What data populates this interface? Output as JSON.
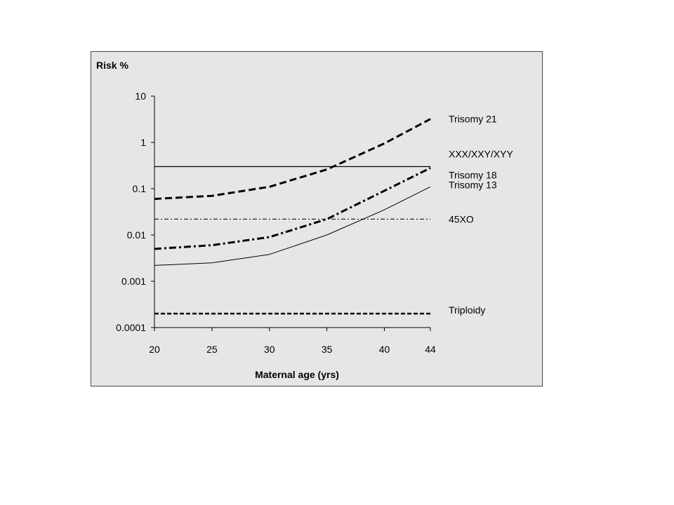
{
  "chart_data": {
    "type": "line",
    "title": "",
    "xlabel": "Maternal age (yrs)",
    "ylabel": "Risk %",
    "x_ticks": [
      20,
      25,
      30,
      35,
      40,
      44
    ],
    "y_ticks": [
      0.0001,
      0.001,
      0.01,
      0.1,
      1,
      10
    ],
    "y_tick_labels": [
      "0.0001",
      "0.001",
      "0.01",
      "0.1",
      "1",
      "10"
    ],
    "xlim": [
      20,
      44
    ],
    "ylim": [
      0.0001,
      10
    ],
    "y_scale": "log",
    "grid": false,
    "legend": "labels at right end of each series",
    "series": [
      {
        "name": "Trisomy 21",
        "style": "dashed-bold",
        "points": [
          [
            20,
            0.06
          ],
          [
            25,
            0.07
          ],
          [
            30,
            0.11
          ],
          [
            35,
            0.26
          ],
          [
            40,
            0.95
          ],
          [
            44,
            3.2
          ]
        ]
      },
      {
        "name": "XXX/XXY/XYY",
        "style": "solid",
        "points": [
          [
            20,
            0.3
          ],
          [
            44,
            0.3
          ]
        ]
      },
      {
        "name": "Trisomy 18",
        "style": "dash-dot-bold",
        "points": [
          [
            20,
            0.005
          ],
          [
            25,
            0.006
          ],
          [
            30,
            0.009
          ],
          [
            35,
            0.022
          ],
          [
            40,
            0.09
          ],
          [
            44,
            0.28
          ]
        ]
      },
      {
        "name": "Trisomy 13",
        "style": "solid-thin",
        "points": [
          [
            20,
            0.0022
          ],
          [
            25,
            0.0025
          ],
          [
            30,
            0.0038
          ],
          [
            35,
            0.01
          ],
          [
            40,
            0.035
          ],
          [
            44,
            0.11
          ]
        ]
      },
      {
        "name": "45XO",
        "style": "dash-dot-thin",
        "points": [
          [
            20,
            0.022
          ],
          [
            44,
            0.022
          ]
        ]
      },
      {
        "name": "Triploidy",
        "style": "dashed-medium",
        "points": [
          [
            20,
            0.0002
          ],
          [
            44,
            0.0002
          ]
        ]
      }
    ]
  }
}
